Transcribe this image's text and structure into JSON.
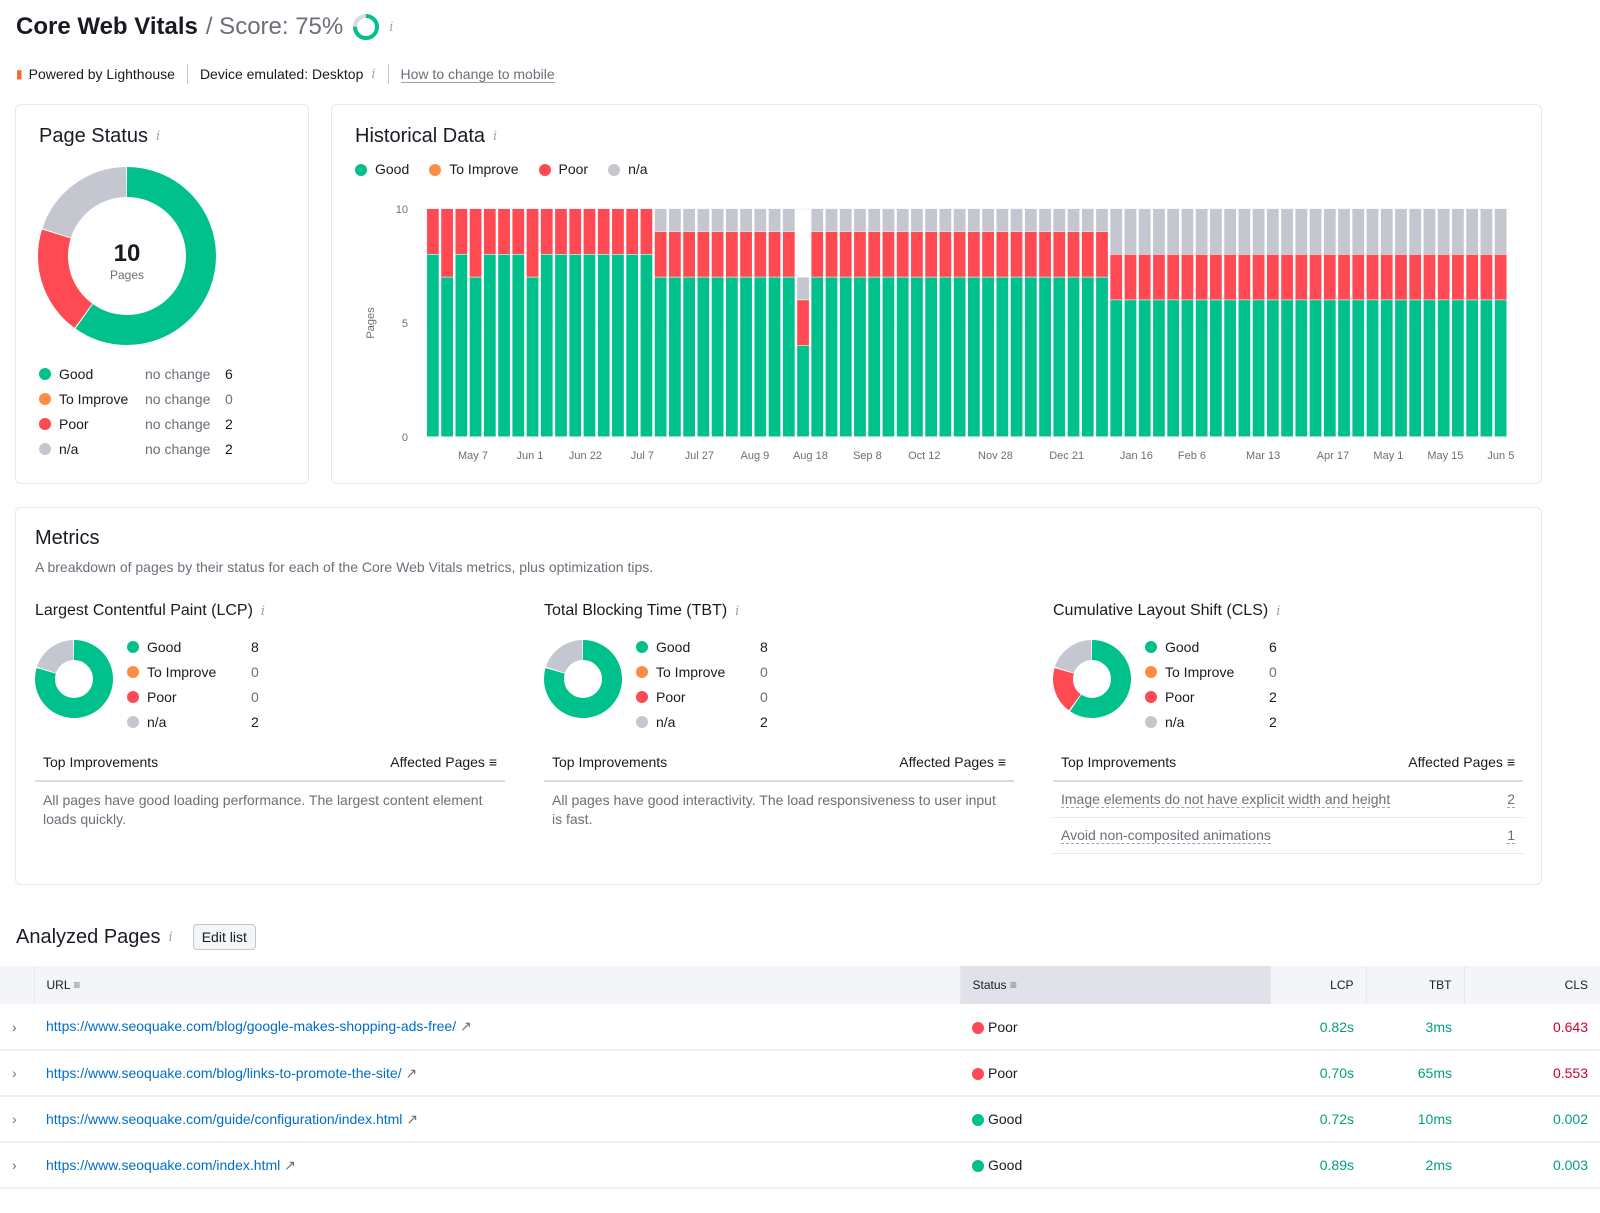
{
  "header": {
    "title": "Core Web Vitals",
    "score_label": "/ Score: 75%",
    "score_value": 75,
    "powered": "Powered by Lighthouse",
    "device": "Device emulated: Desktop",
    "mobile_link": "How to change to mobile"
  },
  "colors": {
    "good": "#00c08b",
    "to_improve": "#ff8c43",
    "poor": "#ff4953",
    "na": "#c4c7cf"
  },
  "page_status": {
    "title": "Page Status",
    "total": "10",
    "total_label": "Pages",
    "items": [
      {
        "label": "Good",
        "change": "no change",
        "value": "6",
        "key": "good"
      },
      {
        "label": "To Improve",
        "change": "no change",
        "value": "0",
        "key": "to_improve"
      },
      {
        "label": "Poor",
        "change": "no change",
        "value": "2",
        "key": "poor"
      },
      {
        "label": "n/a",
        "change": "no change",
        "value": "2",
        "key": "na"
      }
    ]
  },
  "historical": {
    "title": "Historical Data",
    "legend": [
      "Good",
      "To Improve",
      "Poor",
      "n/a"
    ]
  },
  "chart_data": {
    "type": "bar",
    "stacked": true,
    "ylabel": "Pages",
    "ylim": [
      0,
      10
    ],
    "yticks": [
      "0",
      "5",
      "10"
    ],
    "x_tick_labels": [
      "May 7",
      "Jun 1",
      "Jun 22",
      "Jul 7",
      "Jul 27",
      "Aug 9",
      "Aug 18",
      "Sep 8",
      "Oct 12",
      "Nov 28",
      "Dec 21",
      "Jan 16",
      "Feb 6",
      "Mar 13",
      "Apr 17",
      "May 1",
      "May 15",
      "Jun 5"
    ],
    "series": [
      {
        "name": "Good",
        "values": [
          8,
          7,
          8,
          7,
          8,
          8,
          8,
          7,
          8,
          8,
          8,
          8,
          8,
          8,
          8,
          8,
          7,
          7,
          7,
          7,
          7,
          7,
          7,
          7,
          7,
          7,
          4,
          7,
          7,
          7,
          7,
          7,
          7,
          7,
          7,
          7,
          7,
          7,
          7,
          7,
          7,
          7,
          7,
          7,
          7,
          7,
          7,
          7,
          6,
          6,
          6,
          6,
          6,
          6,
          6,
          6,
          6,
          6,
          6,
          6,
          6,
          6,
          6,
          6,
          6,
          6,
          6,
          6,
          6,
          6,
          6,
          6,
          6,
          6,
          6,
          6
        ]
      },
      {
        "name": "To Improve",
        "values": [
          0,
          0,
          0,
          0,
          0,
          0,
          0,
          0,
          0,
          0,
          0,
          0,
          0,
          0,
          0,
          0,
          0,
          0,
          0,
          0,
          0,
          0,
          0,
          0,
          0,
          0,
          0,
          0,
          0,
          0,
          0,
          0,
          0,
          0,
          0,
          0,
          0,
          0,
          0,
          0,
          0,
          0,
          0,
          0,
          0,
          0,
          0,
          0,
          0,
          0,
          0,
          0,
          0,
          0,
          0,
          0,
          0,
          0,
          0,
          0,
          0,
          0,
          0,
          0,
          0,
          0,
          0,
          0,
          0,
          0,
          0,
          0,
          0,
          0,
          0,
          0
        ]
      },
      {
        "name": "Poor",
        "values": [
          2,
          3,
          2,
          3,
          2,
          2,
          2,
          3,
          2,
          2,
          2,
          2,
          2,
          2,
          2,
          2,
          2,
          2,
          2,
          2,
          2,
          2,
          2,
          2,
          2,
          2,
          2,
          2,
          2,
          2,
          2,
          2,
          2,
          2,
          2,
          2,
          2,
          2,
          2,
          2,
          2,
          2,
          2,
          2,
          2,
          2,
          2,
          2,
          2,
          2,
          2,
          2,
          2,
          2,
          2,
          2,
          2,
          2,
          2,
          2,
          2,
          2,
          2,
          2,
          2,
          2,
          2,
          2,
          2,
          2,
          2,
          2,
          2,
          2,
          2,
          2
        ]
      },
      {
        "name": "n/a",
        "values": [
          0,
          0,
          0,
          0,
          0,
          0,
          0,
          0,
          0,
          0,
          0,
          0,
          0,
          0,
          0,
          0,
          1,
          1,
          1,
          1,
          1,
          1,
          1,
          1,
          1,
          1,
          1,
          1,
          1,
          1,
          1,
          1,
          1,
          1,
          1,
          1,
          1,
          1,
          1,
          1,
          1,
          1,
          1,
          1,
          1,
          1,
          1,
          1,
          2,
          2,
          2,
          2,
          2,
          2,
          2,
          2,
          2,
          2,
          2,
          2,
          2,
          2,
          2,
          2,
          2,
          2,
          2,
          2,
          2,
          2,
          2,
          2,
          2,
          2,
          2,
          2
        ]
      }
    ]
  },
  "metrics": {
    "title": "Metrics",
    "description": "A breakdown of pages by their status for each of the Core Web Vitals metrics, plus optimization tips.",
    "imp_header": "Top Improvements",
    "affected_header": "Affected Pages",
    "cards": [
      {
        "title": "Largest Contentful Paint (LCP)",
        "values": [
          "8",
          "0",
          "0",
          "2"
        ],
        "text": "All pages have good loading performance. The largest content element loads quickly.",
        "improvements": []
      },
      {
        "title": "Total Blocking Time (TBT)",
        "values": [
          "8",
          "0",
          "0",
          "2"
        ],
        "text": "All pages have good interactivity. The load responsiveness to user input is fast.",
        "improvements": []
      },
      {
        "title": "Cumulative Layout Shift (CLS)",
        "values": [
          "6",
          "0",
          "2",
          "2"
        ],
        "text": "",
        "improvements": [
          {
            "label": "Image elements do not have explicit width and height",
            "count": "2"
          },
          {
            "label": "Avoid non-composited animations",
            "count": "1"
          }
        ]
      }
    ]
  },
  "analyzed": {
    "title": "Analyzed Pages",
    "edit": "Edit list",
    "columns": [
      "URL",
      "Status",
      "LCP",
      "TBT",
      "CLS"
    ],
    "rows": [
      {
        "url": "https://www.seoquake.com/blog/google-makes-shopping-ads-free/",
        "status": "Poor",
        "lcp": "0.82s",
        "tbt": "3ms",
        "cls": "0.643",
        "cls_state": "poor"
      },
      {
        "url": "https://www.seoquake.com/blog/links-to-promote-the-site/",
        "status": "Poor",
        "lcp": "0.70s",
        "tbt": "65ms",
        "cls": "0.553",
        "cls_state": "poor"
      },
      {
        "url": "https://www.seoquake.com/guide/configuration/index.html",
        "status": "Good",
        "lcp": "0.72s",
        "tbt": "10ms",
        "cls": "0.002",
        "cls_state": "good"
      },
      {
        "url": "https://www.seoquake.com/index.html",
        "status": "Good",
        "lcp": "0.89s",
        "tbt": "2ms",
        "cls": "0.003",
        "cls_state": "good"
      }
    ]
  }
}
